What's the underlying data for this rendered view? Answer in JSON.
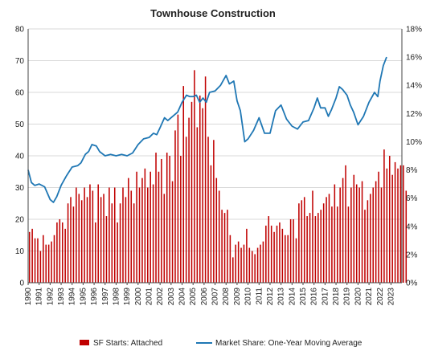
{
  "chart_data": {
    "type": "bar+line",
    "title": "Townhouse Construction",
    "x_labels": [
      "1990",
      "1991",
      "1992",
      "1993",
      "1994",
      "1995",
      "1996",
      "1997",
      "1998",
      "1999",
      "2000",
      "2001",
      "2002",
      "2003",
      "2004",
      "2005",
      "2006",
      "2007",
      "2008",
      "2009",
      "2010",
      "2011",
      "2012",
      "2013",
      "2014",
      "2015",
      "2016",
      "2017",
      "2018",
      "2019",
      "2020",
      "2021",
      "2022",
      "2023"
    ],
    "y_left": {
      "min": 0,
      "max": 80,
      "ticks": [
        "0",
        "10",
        "20",
        "30",
        "40",
        "50",
        "60",
        "70",
        "80"
      ]
    },
    "y_right": {
      "min": 0,
      "max": 18,
      "ticks": [
        "0%",
        "2%",
        "4%",
        "6%",
        "8%",
        "10%",
        "12%",
        "14%",
        "16%",
        "18%"
      ]
    },
    "legend_position": "bottom",
    "series": [
      {
        "name": "SF Starts: Attached",
        "kind": "bar",
        "axis": "left",
        "color": "#c00000",
        "quarters_start": 1990,
        "values": [
          16,
          17,
          14,
          14,
          10,
          15,
          12,
          12,
          13,
          15,
          19,
          20,
          19,
          17,
          25,
          27,
          24,
          30,
          28,
          26,
          30,
          27,
          31,
          29,
          19,
          31,
          27,
          28,
          21,
          30,
          25,
          30,
          19,
          25,
          30,
          27,
          33,
          29,
          25,
          35,
          30,
          33,
          36,
          30,
          35,
          31,
          41,
          35,
          39,
          28,
          41,
          40,
          32,
          48,
          53,
          40,
          62,
          46,
          52,
          57,
          67,
          49,
          59,
          55,
          65,
          46,
          37,
          45,
          33,
          29,
          23,
          22,
          23,
          15,
          8,
          12,
          13,
          11,
          12,
          17,
          11,
          10,
          9,
          11,
          12,
          13,
          18,
          21,
          18,
          16,
          18,
          19,
          17,
          15,
          15,
          20,
          20,
          14,
          25,
          26,
          27,
          21,
          22,
          29,
          21,
          22,
          23,
          25,
          27,
          28,
          24,
          31,
          24,
          30,
          33,
          37,
          24,
          30,
          34,
          31,
          30,
          32,
          23,
          26,
          28,
          30,
          32,
          35,
          30,
          42,
          36,
          40,
          34,
          38,
          36,
          37,
          37,
          29
        ]
      },
      {
        "name": "Market Share: One-Year Moving Average",
        "kind": "line",
        "axis": "right",
        "color": "#1f77b4",
        "points": [
          [
            1990,
            8.0
          ],
          [
            1990.3,
            7.1
          ],
          [
            1990.6,
            6.9
          ],
          [
            1991,
            7.0
          ],
          [
            1991.5,
            6.8
          ],
          [
            1992,
            5.9
          ],
          [
            1992.3,
            5.7
          ],
          [
            1992.6,
            6.1
          ],
          [
            1993,
            6.9
          ],
          [
            1993.5,
            7.6
          ],
          [
            1994,
            8.2
          ],
          [
            1994.5,
            8.3
          ],
          [
            1994.8,
            8.5
          ],
          [
            1995.2,
            9.1
          ],
          [
            1995.5,
            9.3
          ],
          [
            1995.8,
            9.8
          ],
          [
            1996.2,
            9.7
          ],
          [
            1996.5,
            9.3
          ],
          [
            1997,
            9.0
          ],
          [
            1997.5,
            9.1
          ],
          [
            1998,
            9.0
          ],
          [
            1998.5,
            9.1
          ],
          [
            1999,
            9.0
          ],
          [
            1999.5,
            9.2
          ],
          [
            2000,
            9.8
          ],
          [
            2000.5,
            10.2
          ],
          [
            2001,
            10.3
          ],
          [
            2001.4,
            10.6
          ],
          [
            2001.7,
            10.5
          ],
          [
            2002,
            11.0
          ],
          [
            2002.4,
            11.7
          ],
          [
            2002.7,
            11.5
          ],
          [
            2003,
            11.7
          ],
          [
            2003.3,
            11.9
          ],
          [
            2003.6,
            12.1
          ],
          [
            2004,
            12.8
          ],
          [
            2004.4,
            13.3
          ],
          [
            2004.7,
            13.2
          ],
          [
            2005,
            13.2
          ],
          [
            2005.3,
            13.3
          ],
          [
            2005.6,
            12.8
          ],
          [
            2005.9,
            13.1
          ],
          [
            2006.2,
            12.8
          ],
          [
            2006.5,
            13.5
          ],
          [
            2007,
            13.6
          ],
          [
            2007.5,
            14.0
          ],
          [
            2008,
            14.7
          ],
          [
            2008.3,
            14.1
          ],
          [
            2008.7,
            14.3
          ],
          [
            2009,
            12.9
          ],
          [
            2009.3,
            12.2
          ],
          [
            2009.7,
            10.0
          ],
          [
            2010,
            10.2
          ],
          [
            2010.5,
            10.8
          ],
          [
            2011,
            11.7
          ],
          [
            2011.5,
            10.6
          ],
          [
            2012,
            10.6
          ],
          [
            2012.5,
            12.2
          ],
          [
            2013,
            12.6
          ],
          [
            2013.5,
            11.6
          ],
          [
            2014,
            11.1
          ],
          [
            2014.5,
            10.9
          ],
          [
            2015,
            11.4
          ],
          [
            2015.5,
            11.5
          ],
          [
            2016,
            12.4
          ],
          [
            2016.3,
            13.1
          ],
          [
            2016.6,
            12.4
          ],
          [
            2017,
            12.4
          ],
          [
            2017.3,
            11.8
          ],
          [
            2017.6,
            12.3
          ],
          [
            2018,
            13.1
          ],
          [
            2018.3,
            13.9
          ],
          [
            2018.6,
            13.7
          ],
          [
            2019,
            13.3
          ],
          [
            2019.3,
            12.6
          ],
          [
            2019.6,
            12.1
          ],
          [
            2020,
            11.2
          ],
          [
            2020.5,
            11.8
          ],
          [
            2021,
            12.8
          ],
          [
            2021.5,
            13.5
          ],
          [
            2021.8,
            13.2
          ],
          [
            2022,
            14.3
          ],
          [
            2022.3,
            15.4
          ],
          [
            2022.6,
            16.0
          ]
        ]
      }
    ]
  }
}
